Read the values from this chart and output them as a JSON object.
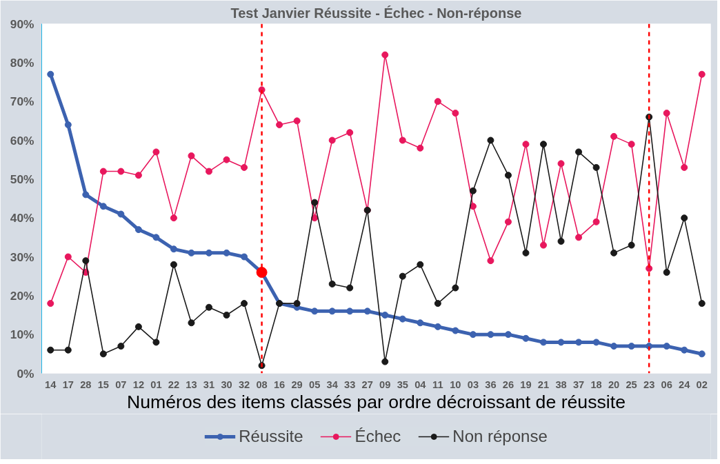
{
  "chart_data": {
    "type": "line",
    "title": "Test Janvier Réussite - Échec - Non-réponse",
    "xlabel": "Numéros des items classés par ordre décroissant de réussite",
    "categories": [
      "14",
      "17",
      "28",
      "15",
      "07",
      "12",
      "01",
      "22",
      "13",
      "31",
      "30",
      "32",
      "08",
      "16",
      "29",
      "05",
      "34",
      "33",
      "27",
      "09",
      "35",
      "04",
      "11",
      "10",
      "03",
      "36",
      "26",
      "19",
      "21",
      "38",
      "37",
      "18",
      "20",
      "25",
      "23",
      "06",
      "24",
      "02"
    ],
    "series": [
      {
        "name": "Réussite",
        "color": "#3c62b0",
        "values": [
          77,
          64,
          46,
          43,
          41,
          37,
          35,
          32,
          31,
          31,
          31,
          30,
          26,
          18,
          17,
          16,
          16,
          16,
          16,
          15,
          14,
          13,
          12,
          11,
          10,
          10,
          10,
          9,
          8,
          8,
          8,
          8,
          7,
          7,
          7,
          7,
          6,
          5
        ]
      },
      {
        "name": "Échec",
        "color": "#e8175d",
        "values": [
          18,
          30,
          26,
          52,
          52,
          51,
          57,
          40,
          56,
          52,
          55,
          53,
          73,
          64,
          65,
          40,
          60,
          62,
          42,
          82,
          60,
          58,
          70,
          67,
          43,
          29,
          39,
          59,
          33,
          54,
          35,
          39,
          61,
          59,
          27,
          67,
          53,
          77
        ]
      },
      {
        "name": "Non réponse",
        "color": "#1a1a1a",
        "values": [
          6,
          6,
          29,
          5,
          7,
          12,
          8,
          28,
          13,
          17,
          15,
          18,
          2,
          18,
          18,
          44,
          23,
          22,
          42,
          3,
          25,
          28,
          18,
          22,
          47,
          60,
          51,
          31,
          59,
          34,
          57,
          53,
          31,
          33,
          66,
          26,
          40,
          18
        ]
      },
      {
        "type": "scatter",
        "color": "#ff0000",
        "x": [
          "08"
        ],
        "values": [
          26
        ]
      }
    ],
    "ref_lines": [
      {
        "axis": "x",
        "value": "08",
        "color": "#ff0000",
        "line_style": "dashed"
      },
      {
        "axis": "x",
        "value": "23",
        "color": "#ff0000",
        "line_style": "dashed"
      }
    ],
    "ylim": [
      0,
      90
    ],
    "yticks": [
      {
        "value": 0,
        "label": "0%"
      },
      {
        "value": 10,
        "label": "10%"
      },
      {
        "value": 20,
        "label": "20%"
      },
      {
        "value": 30,
        "label": "30%"
      },
      {
        "value": 40,
        "label": "40%"
      },
      {
        "value": 50,
        "label": "50%"
      },
      {
        "value": 60,
        "label": "60%"
      },
      {
        "value": 70,
        "label": "70%"
      },
      {
        "value": 80,
        "label": "80%"
      },
      {
        "value": 90,
        "label": "90%"
      }
    ],
    "grid": false,
    "legend": "bottom",
    "marker": "circle",
    "line_style": "solid"
  }
}
